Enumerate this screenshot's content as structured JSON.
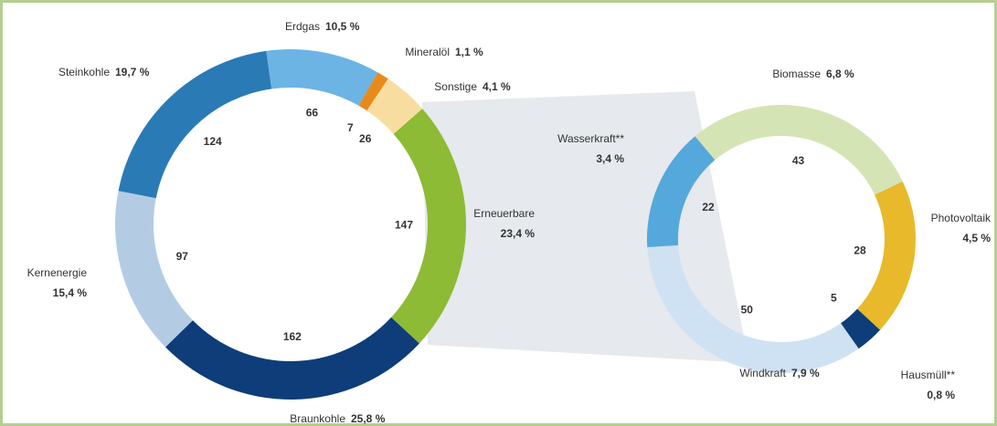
{
  "chart_data": [
    {
      "type": "donut",
      "categories": [
        "Erdgas",
        "Mineralöl",
        "Sonstige",
        "Erneuerbare",
        "Braunkohle",
        "Kernenergie",
        "Steinkohle"
      ],
      "values": [
        66,
        7,
        26,
        147,
        162,
        97,
        124
      ],
      "percent_labels": [
        "10,5 %",
        "1,1 %",
        "4,1 %",
        "23,4 %",
        "25,8 %",
        "15,4 %",
        "19,7 %"
      ],
      "colors": [
        "#6cb4e4",
        "#e88a1a",
        "#f7dea0",
        "#8dbb35",
        "#0e3d7a",
        "#b3cce4",
        "#2a7ab5"
      ]
    },
    {
      "type": "donut",
      "categories": [
        "Biomasse",
        "Photovoltaik",
        "Hausmüll**",
        "Windkraft",
        "Wasserkraft**"
      ],
      "values": [
        43,
        28,
        5,
        50,
        22
      ],
      "percent_labels": [
        "6,8 %",
        "4,5 %",
        "0,8 %",
        "7,9 %",
        "3,4 %"
      ],
      "colors": [
        "#d5e4b5",
        "#e8b92a",
        "#0e3d7a",
        "#cfe2f3",
        "#55a8dc"
      ]
    }
  ]
}
